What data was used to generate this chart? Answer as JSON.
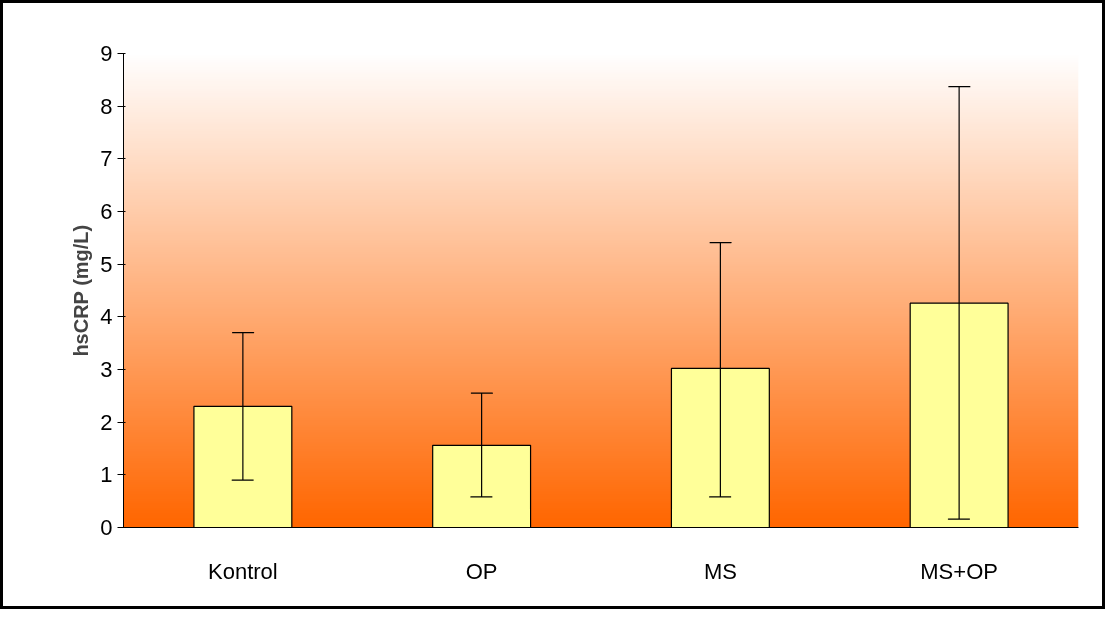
{
  "chart_data": {
    "type": "bar",
    "ylabel": "hsCRP (mg/L)",
    "categories": [
      "Kontrol",
      "OP",
      "MS",
      "MS+OP"
    ],
    "values": [
      2.3,
      1.56,
      3.02,
      4.26
    ],
    "errors": [
      [
        0.9,
        3.7
      ],
      [
        0.58,
        2.55
      ],
      [
        0.58,
        5.41
      ],
      [
        0.16,
        8.37
      ]
    ],
    "color": "#ffff99",
    "ylim": [
      0,
      9
    ],
    "yticks": [
      0,
      1,
      2,
      3,
      4,
      5,
      6,
      7,
      8,
      9
    ],
    "grid": false
  }
}
